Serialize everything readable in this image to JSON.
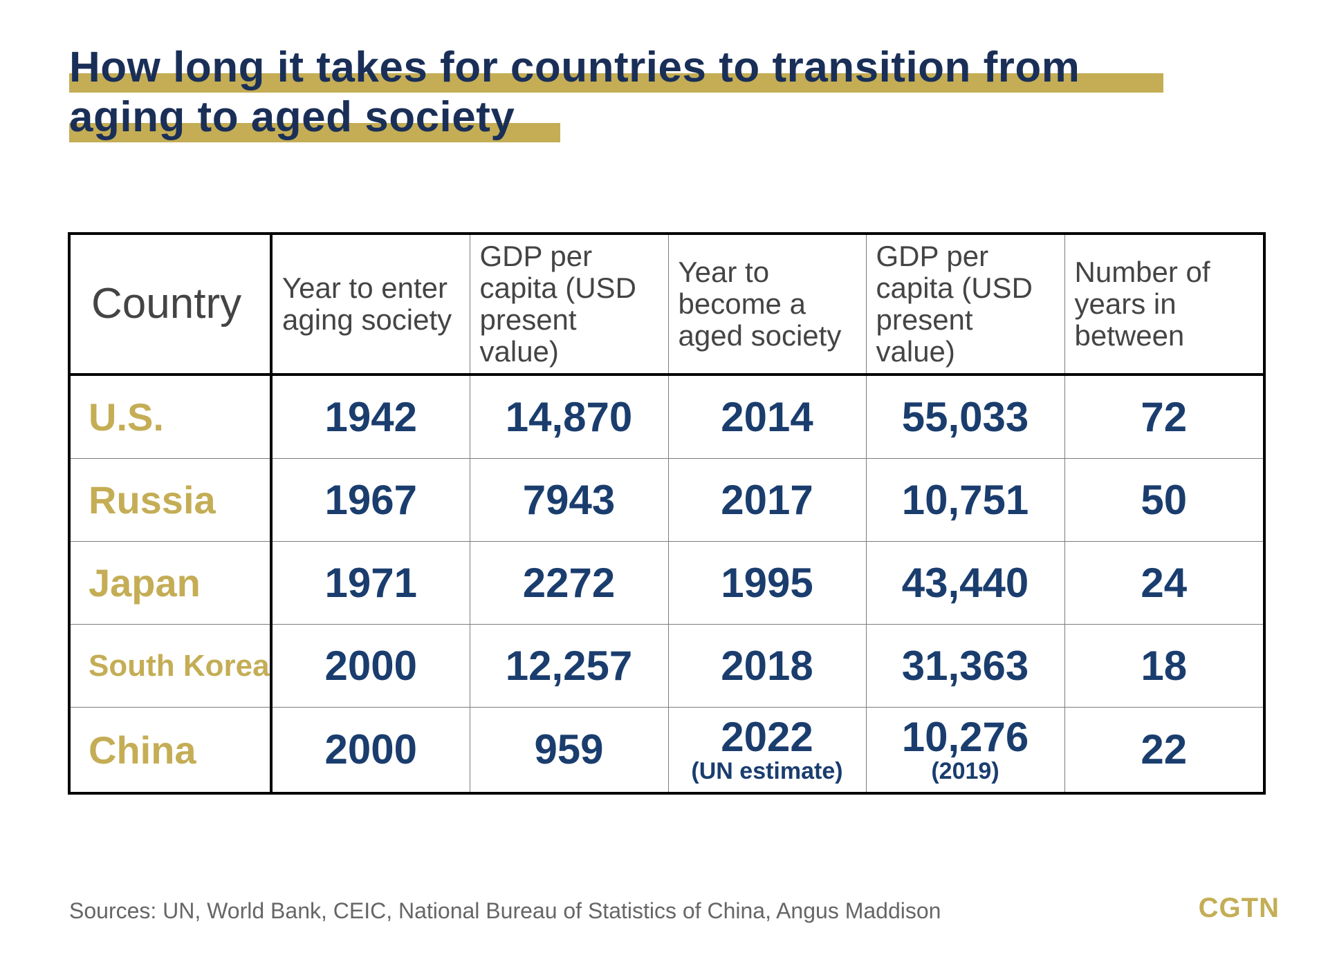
{
  "title": {
    "line1": "How long it takes for countries to transition from",
    "line2": "aging to aged society"
  },
  "colors": {
    "title_text": "#1a2f57",
    "highlight_bar": "#c4ad55",
    "country_text": "#c4ad55",
    "number_text": "#1a3d6e",
    "header_text": "#444444"
  },
  "chart_data": {
    "type": "table",
    "title": "How long it takes for countries to transition from aging to aged society",
    "columns": [
      "Country",
      "Year to enter aging society",
      "GDP per capita (USD present value)",
      "Year to become a aged society",
      "GDP per capita (USD present value)",
      "Number of years in between"
    ],
    "rows": [
      {
        "country": "U.S.",
        "enter_year": "1942",
        "gdp_enter": "14,870",
        "aged_year": "2014",
        "aged_year_note": "",
        "gdp_aged": "55,033",
        "gdp_aged_note": "",
        "years_between": "72"
      },
      {
        "country": "Russia",
        "enter_year": "1967",
        "gdp_enter": "7943",
        "aged_year": "2017",
        "aged_year_note": "",
        "gdp_aged": "10,751",
        "gdp_aged_note": "",
        "years_between": "50"
      },
      {
        "country": "Japan",
        "enter_year": "1971",
        "gdp_enter": "2272",
        "aged_year": "1995",
        "aged_year_note": "",
        "gdp_aged": "43,440",
        "gdp_aged_note": "",
        "years_between": "24"
      },
      {
        "country": "South Korea",
        "enter_year": "2000",
        "gdp_enter": "12,257",
        "aged_year": "2018",
        "aged_year_note": "",
        "gdp_aged": "31,363",
        "gdp_aged_note": "",
        "years_between": "18"
      },
      {
        "country": "China",
        "enter_year": "2000",
        "gdp_enter": "959",
        "aged_year": "2022",
        "aged_year_note": "(UN estimate)",
        "gdp_aged": "10,276",
        "gdp_aged_note": "(2019)",
        "years_between": "22"
      }
    ]
  },
  "header": {
    "col1": "Country",
    "col2": "Year to enter aging society",
    "col3": "GDP per capita (USD present value)",
    "col4": "Year to become a aged society",
    "col5": "GDP per capita (USD present value)",
    "col6": "Number of years in between"
  },
  "source": "Sources: UN, World Bank, CEIC, National Bureau of Statistics of China, Angus Maddison",
  "brand": "CGTN"
}
